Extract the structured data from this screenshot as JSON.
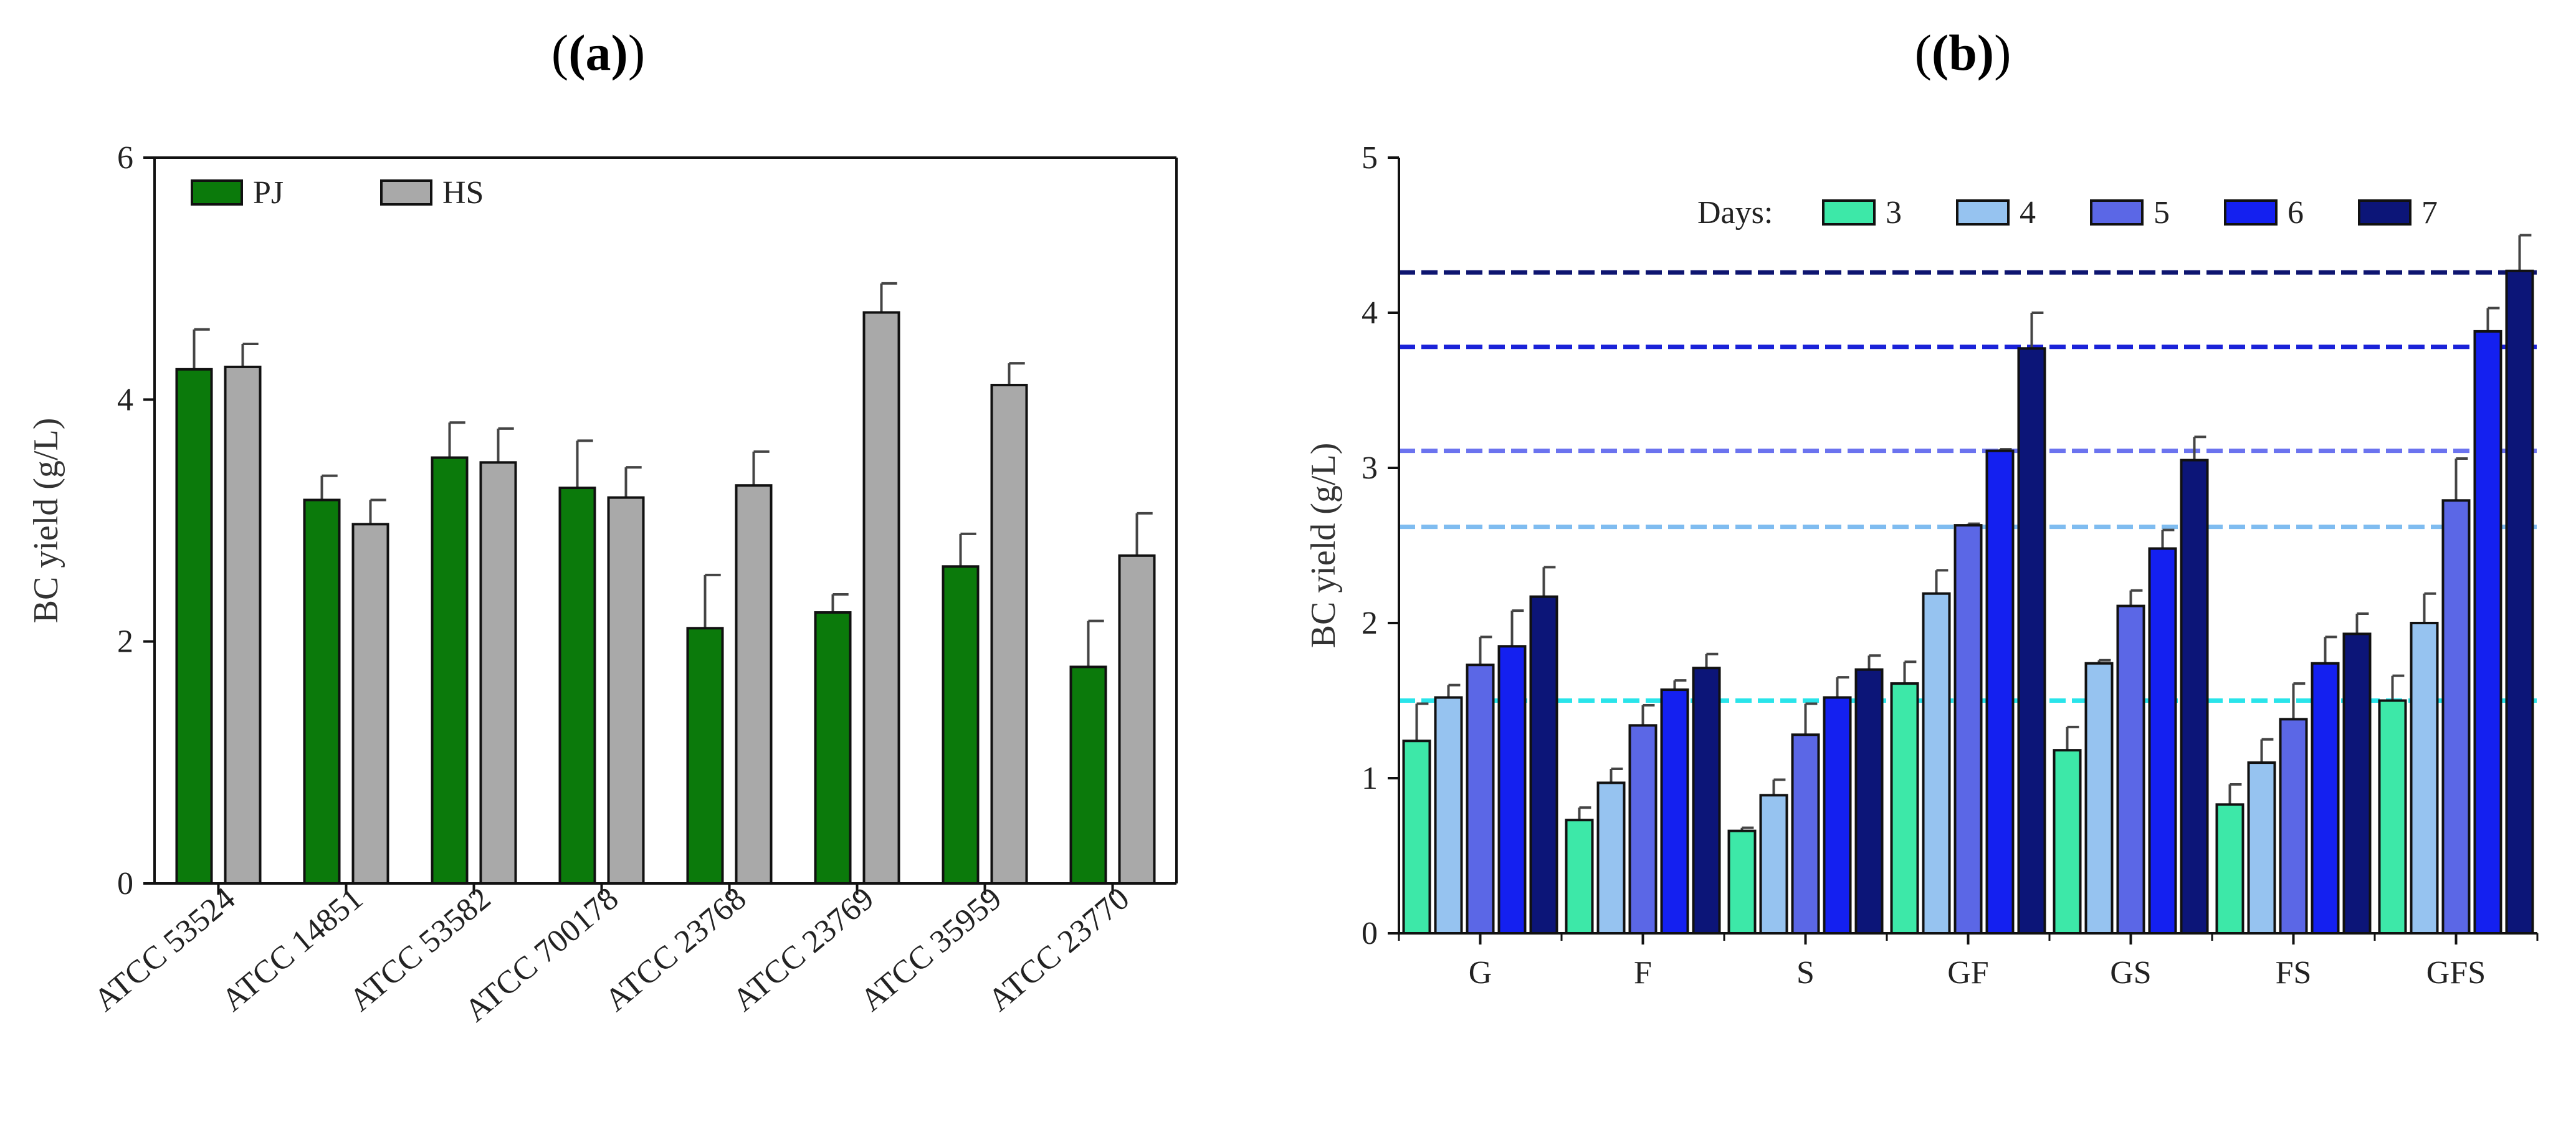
{
  "chart_data": [
    {
      "panel": "(a)",
      "type": "bar",
      "ylabel": "BC yield (g/L)",
      "xlabel": "",
      "ylim": [
        0,
        6
      ],
      "yticks": [
        0,
        2,
        4,
        6
      ],
      "grid": false,
      "legend_position": "top-left",
      "categories": [
        "ATCC 53524",
        "ATCC 14851",
        "ATCC 53582",
        "ATCC 700178",
        "ATCC 23768",
        "ATCC 23769",
        "ATCC 35959",
        "ATCC 23770"
      ],
      "series": [
        {
          "name": "PJ",
          "color": "#0b7a0b",
          "values": [
            4.25,
            3.17,
            3.52,
            3.27,
            2.11,
            2.24,
            2.62,
            1.79
          ],
          "errors": [
            0.33,
            0.2,
            0.29,
            0.39,
            0.44,
            0.15,
            0.27,
            0.38
          ]
        },
        {
          "name": "HS",
          "color": "#a9a9a9",
          "values": [
            4.27,
            2.97,
            3.48,
            3.19,
            3.29,
            4.72,
            4.12,
            2.71
          ],
          "errors": [
            0.19,
            0.2,
            0.28,
            0.25,
            0.28,
            0.24,
            0.18,
            0.35
          ]
        }
      ]
    },
    {
      "panel": "(b)",
      "type": "bar",
      "ylabel": "BC yield (g/L)",
      "xlabel": "",
      "ylim": [
        0,
        5
      ],
      "yticks": [
        0,
        1,
        2,
        3,
        4,
        5
      ],
      "grid": false,
      "legend_position": "top-right",
      "legend_title": "Days:",
      "categories": [
        "G",
        "F",
        "S",
        "GF",
        "GS",
        "FS",
        "GFS"
      ],
      "series": [
        {
          "name": "3",
          "color": "#3de8a8",
          "values": [
            1.24,
            0.73,
            0.66,
            1.61,
            1.18,
            0.83,
            1.5
          ],
          "errors": [
            0.24,
            0.08,
            0.02,
            0.14,
            0.15,
            0.13,
            0.16
          ]
        },
        {
          "name": "4",
          "color": "#96c3f0",
          "values": [
            1.52,
            0.97,
            0.89,
            2.19,
            1.74,
            1.1,
            2.0
          ],
          "errors": [
            0.08,
            0.09,
            0.1,
            0.15,
            0.02,
            0.15,
            0.19
          ]
        },
        {
          "name": "5",
          "color": "#5b67e6",
          "values": [
            1.73,
            1.34,
            1.28,
            2.63,
            2.11,
            1.38,
            2.79
          ],
          "errors": [
            0.18,
            0.13,
            0.2,
            0.01,
            0.1,
            0.23,
            0.27
          ]
        },
        {
          "name": "6",
          "color": "#1420f0",
          "values": [
            1.85,
            1.57,
            1.52,
            3.11,
            2.48,
            1.74,
            3.88
          ],
          "errors": [
            0.23,
            0.06,
            0.13,
            0.01,
            0.12,
            0.17,
            0.15
          ]
        },
        {
          "name": "7",
          "color": "#0c1578",
          "values": [
            2.17,
            1.71,
            1.7,
            3.77,
            3.05,
            1.93,
            4.27
          ],
          "errors": [
            0.19,
            0.09,
            0.09,
            0.23,
            0.15,
            0.13,
            0.23
          ]
        }
      ],
      "reference_lines": [
        {
          "value": 1.5,
          "color": "#29e4ea"
        },
        {
          "value": 2.62,
          "color": "#7fbcf0"
        },
        {
          "value": 3.11,
          "color": "#6b73ef"
        },
        {
          "value": 3.78,
          "color": "#1a22d8"
        },
        {
          "value": 4.26,
          "color": "#0e1570"
        }
      ]
    }
  ]
}
